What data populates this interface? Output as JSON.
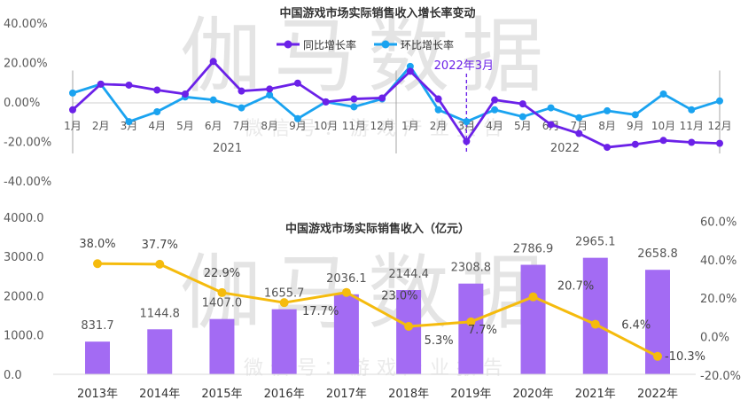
{
  "watermark": {
    "large": "伽马数据",
    "small": "微信号：游戏产业报告"
  },
  "colors": {
    "yoy": "#6B21E8",
    "mom": "#1AA3F0",
    "bar": "#A36BF3",
    "growth_line": "#F5BB0D",
    "axis_text": "#595959",
    "title": "#333333",
    "annotation": "#6B21E8"
  },
  "chart_data": [
    {
      "type": "line",
      "title": "中国游戏市场实际销售收入增长率变动",
      "x": [
        "1月",
        "2月",
        "3月",
        "4月",
        "5月",
        "6月",
        "7月",
        "8月",
        "9月",
        "10月",
        "11月",
        "12月",
        "1月",
        "2月",
        "3月",
        "4月",
        "5月",
        "6月",
        "7月",
        "8月",
        "9月",
        "10月",
        "11月",
        "12月"
      ],
      "year_groups": [
        {
          "label": "2021",
          "months": 12
        },
        {
          "label": "2022",
          "months": 12
        }
      ],
      "y_ticks": [
        "40.00%",
        "20.00%",
        "0.00%",
        "-20.00%",
        "-40.00%"
      ],
      "ylim": [
        -40,
        40
      ],
      "series": [
        {
          "name": "同比增长率",
          "color_key": "yoy",
          "values": [
            -3.5,
            9.5,
            9.0,
            6.5,
            4.5,
            21.0,
            6.0,
            7.0,
            10.0,
            0.5,
            2.0,
            2.5,
            16.0,
            2.0,
            -19.5,
            1.5,
            -0.5,
            -11.0,
            -15.5,
            -22.5,
            -21.0,
            -19.0,
            -20.0,
            -20.5
          ]
        },
        {
          "name": "环比增长率",
          "color_key": "mom",
          "values": [
            5.0,
            9.5,
            -9.5,
            -4.5,
            3.0,
            1.5,
            -2.5,
            4.0,
            -8.0,
            0.5,
            -2.0,
            2.0,
            18.5,
            -3.5,
            -9.5,
            -3.5,
            -7.0,
            -2.5,
            -7.5,
            -4.0,
            -6.0,
            4.5,
            -3.5,
            1.0
          ]
        }
      ],
      "annotation": {
        "label": "2022年3月",
        "index": 14
      }
    },
    {
      "type": "bar",
      "title": "中国游戏市场实际销售收入（亿元）",
      "categories": [
        "2013年",
        "2014年",
        "2015年",
        "2016年",
        "2017年",
        "2018年",
        "2019年",
        "2020年",
        "2021年",
        "2022年"
      ],
      "values": [
        831.7,
        1144.8,
        1407.0,
        1655.7,
        2036.1,
        2144.4,
        2308.8,
        2786.9,
        2965.1,
        2658.8
      ],
      "value_labels": [
        "831.7",
        "1144.8",
        "1407.0",
        "1655.7",
        "2036.1",
        "2144.4",
        "2308.8",
        "2786.9",
        "2965.1",
        "2658.8"
      ],
      "ylim": [
        0,
        4000
      ],
      "y_ticks": [
        "4000.0",
        "3000.0",
        "2000.0",
        "1000.0",
        "0.0"
      ],
      "secondary": {
        "type": "line",
        "values": [
          38.0,
          37.7,
          22.9,
          17.7,
          23.0,
          5.3,
          7.7,
          20.7,
          6.4,
          -10.3
        ],
        "value_labels": [
          "38.0%",
          "37.7%",
          "22.9%",
          "17.7%",
          "23.0%",
          "5.3%",
          "7.7%",
          "20.7%",
          "6.4%",
          "-10.3%"
        ],
        "ylim": [
          -20,
          60
        ],
        "y_ticks": [
          "60.0%",
          "40.0%",
          "20.0%",
          "0.0%",
          "-20.0%"
        ]
      }
    }
  ]
}
